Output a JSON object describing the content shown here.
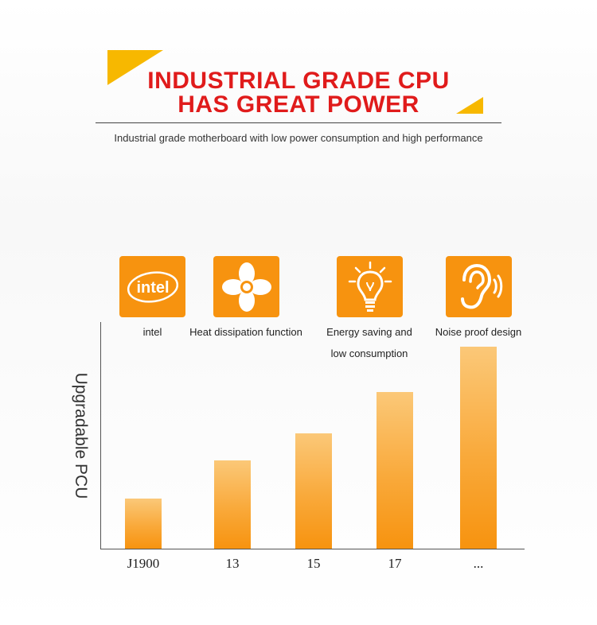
{
  "header": {
    "title_line1": "INDUSTRIAL GRADE CPU",
    "title_line2": "HAS GREAT POWER",
    "subtitle": "Industrial grade motherboard with low power consumption and high performance"
  },
  "features": [
    {
      "icon": "intel-logo-icon",
      "label": "intel"
    },
    {
      "icon": "fan-icon",
      "label": "Heat dissipation function"
    },
    {
      "icon": "lightbulb-icon",
      "label_line1": "Energy saving and",
      "label_line2": "low consumption"
    },
    {
      "icon": "ear-icon",
      "label": "Noise proof design"
    }
  ],
  "colors": {
    "accent": "#f7930f",
    "title": "#e01b1b",
    "triangle": "#f7b800"
  },
  "chart_data": {
    "type": "bar",
    "title": "",
    "xlabel": "",
    "ylabel": "Upgradable PCU",
    "categories": [
      "J1900",
      "13",
      "15",
      "17",
      "..."
    ],
    "values": [
      22,
      39,
      51,
      69,
      89
    ],
    "ylim": [
      0,
      100
    ],
    "grid": false,
    "tick_labels_y": false
  }
}
